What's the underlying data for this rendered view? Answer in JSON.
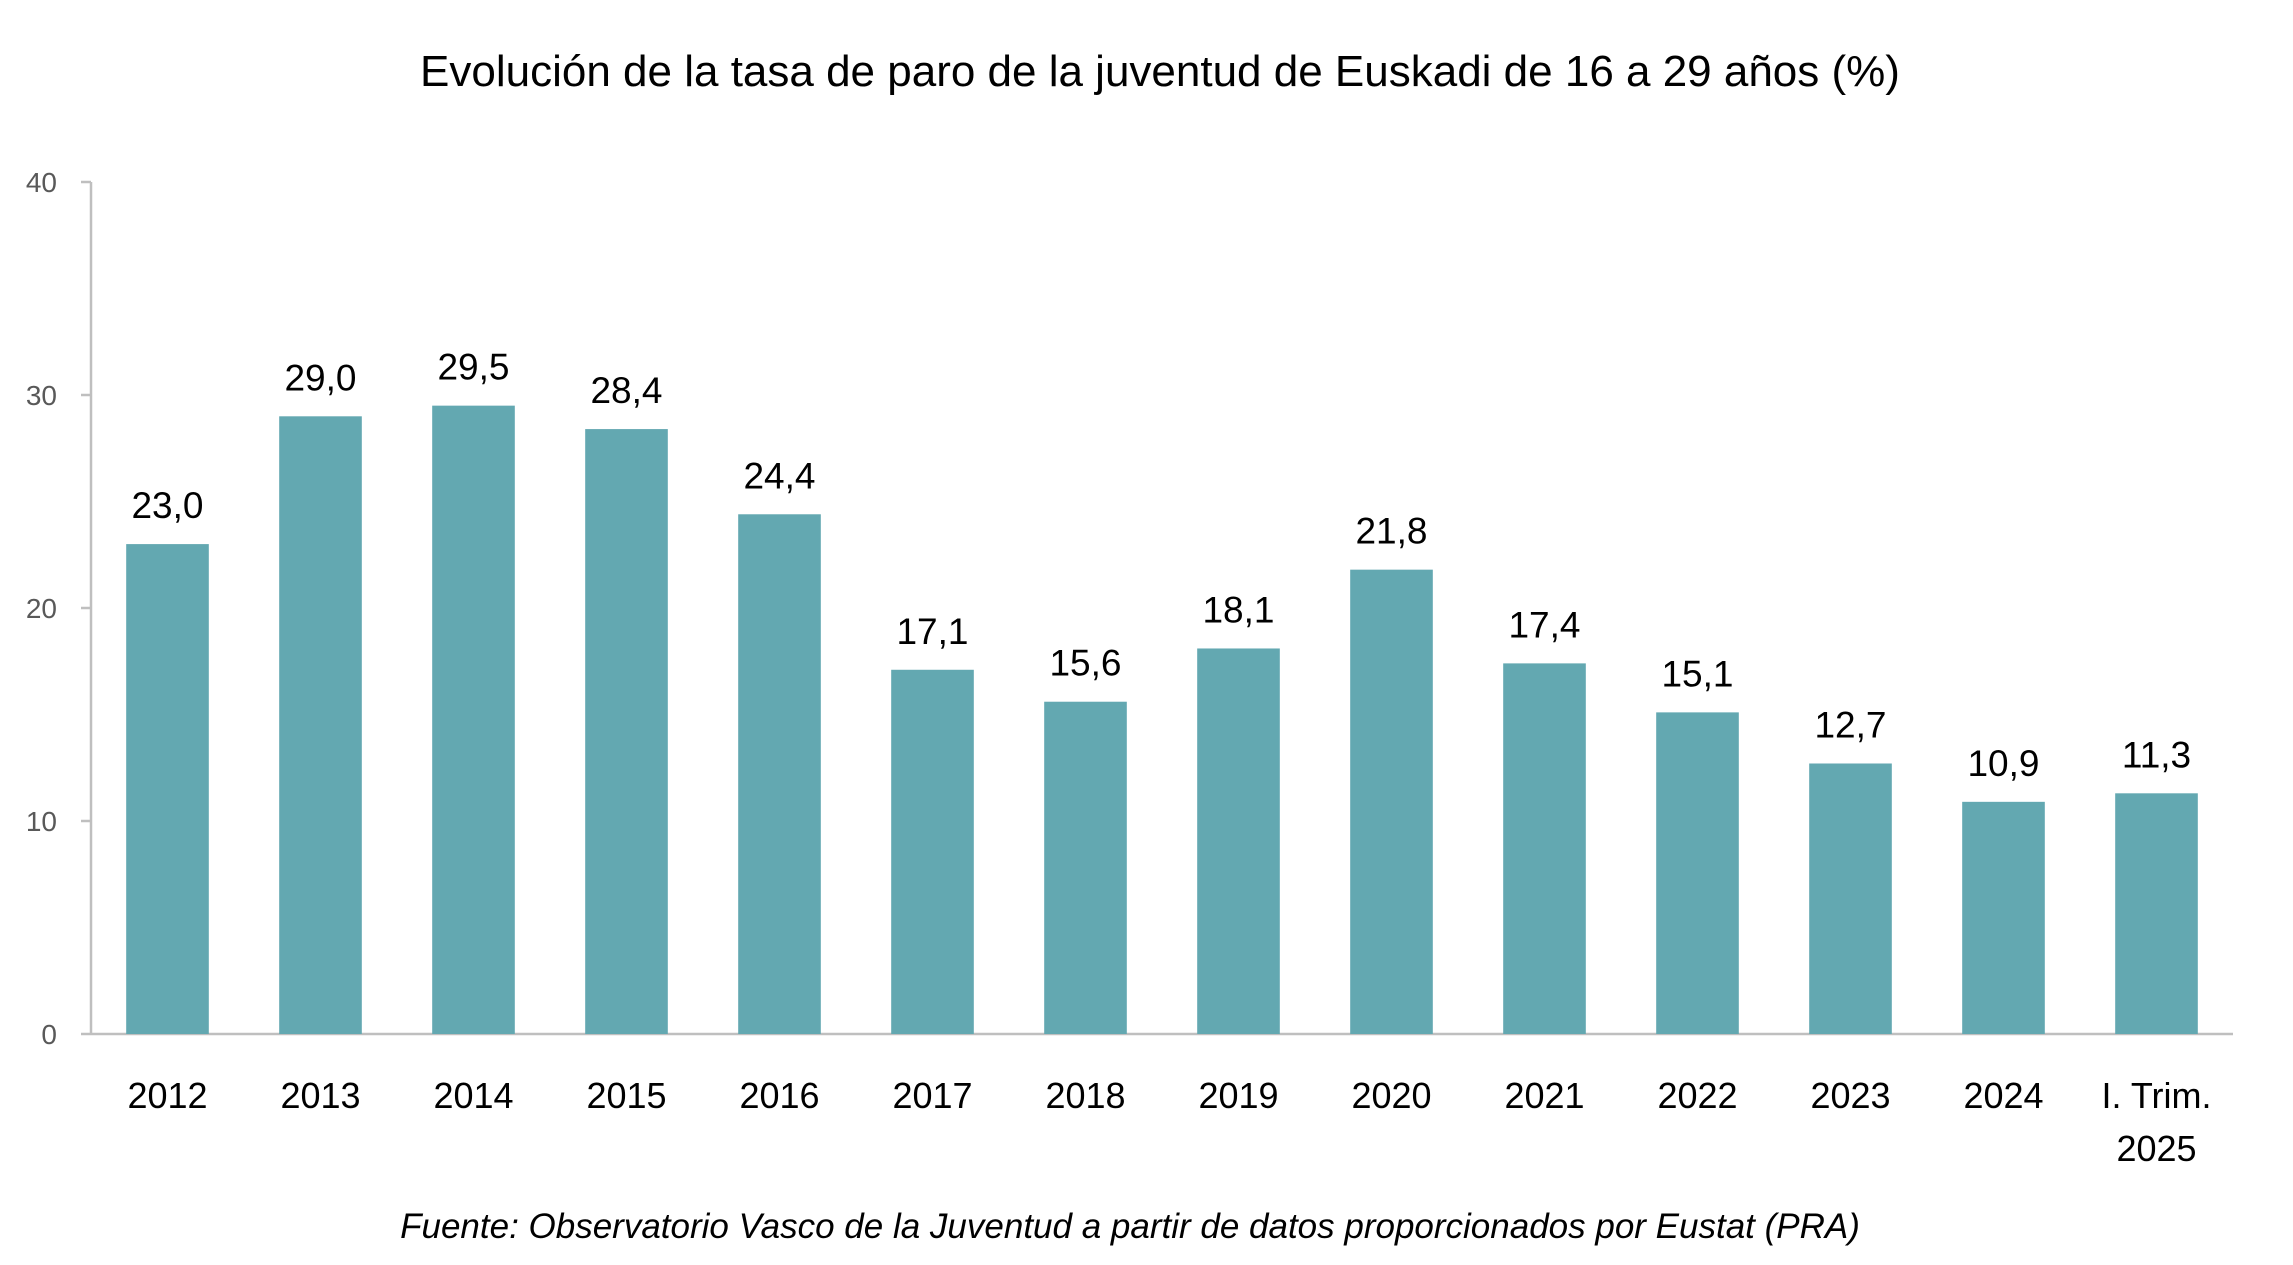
{
  "chart_data": {
    "type": "bar",
    "title": "Evolución de la tasa de paro de la juventud de Euskadi de 16 a 29 años (%)",
    "categories": [
      "2012",
      "2013",
      "2014",
      "2015",
      "2016",
      "2017",
      "2018",
      "2019",
      "2020",
      "2021",
      "2022",
      "2023",
      "2024",
      [
        "I. Trim.",
        "2025"
      ]
    ],
    "values": [
      23.0,
      29.0,
      29.5,
      28.4,
      24.4,
      17.1,
      15.6,
      18.1,
      21.8,
      17.4,
      15.1,
      12.7,
      10.9,
      11.3
    ],
    "data_labels": [
      "23,0",
      "29,0",
      "29,5",
      "28,4",
      "24,4",
      "17,1",
      "15,6",
      "18,1",
      "21,8",
      "17,4",
      "15,1",
      "12,7",
      "10,9",
      "11,3"
    ],
    "yticks": [
      "0",
      "10",
      "20",
      "30",
      "40"
    ],
    "ylim": [
      0,
      40
    ],
    "xlabel": "",
    "ylabel": "",
    "grid": false,
    "legend": "none",
    "bar_color": "#63A8B1",
    "source": "Fuente: Observatorio Vasco de la Juventud a partir de datos proporcionados por Eustat  (PRA)"
  }
}
